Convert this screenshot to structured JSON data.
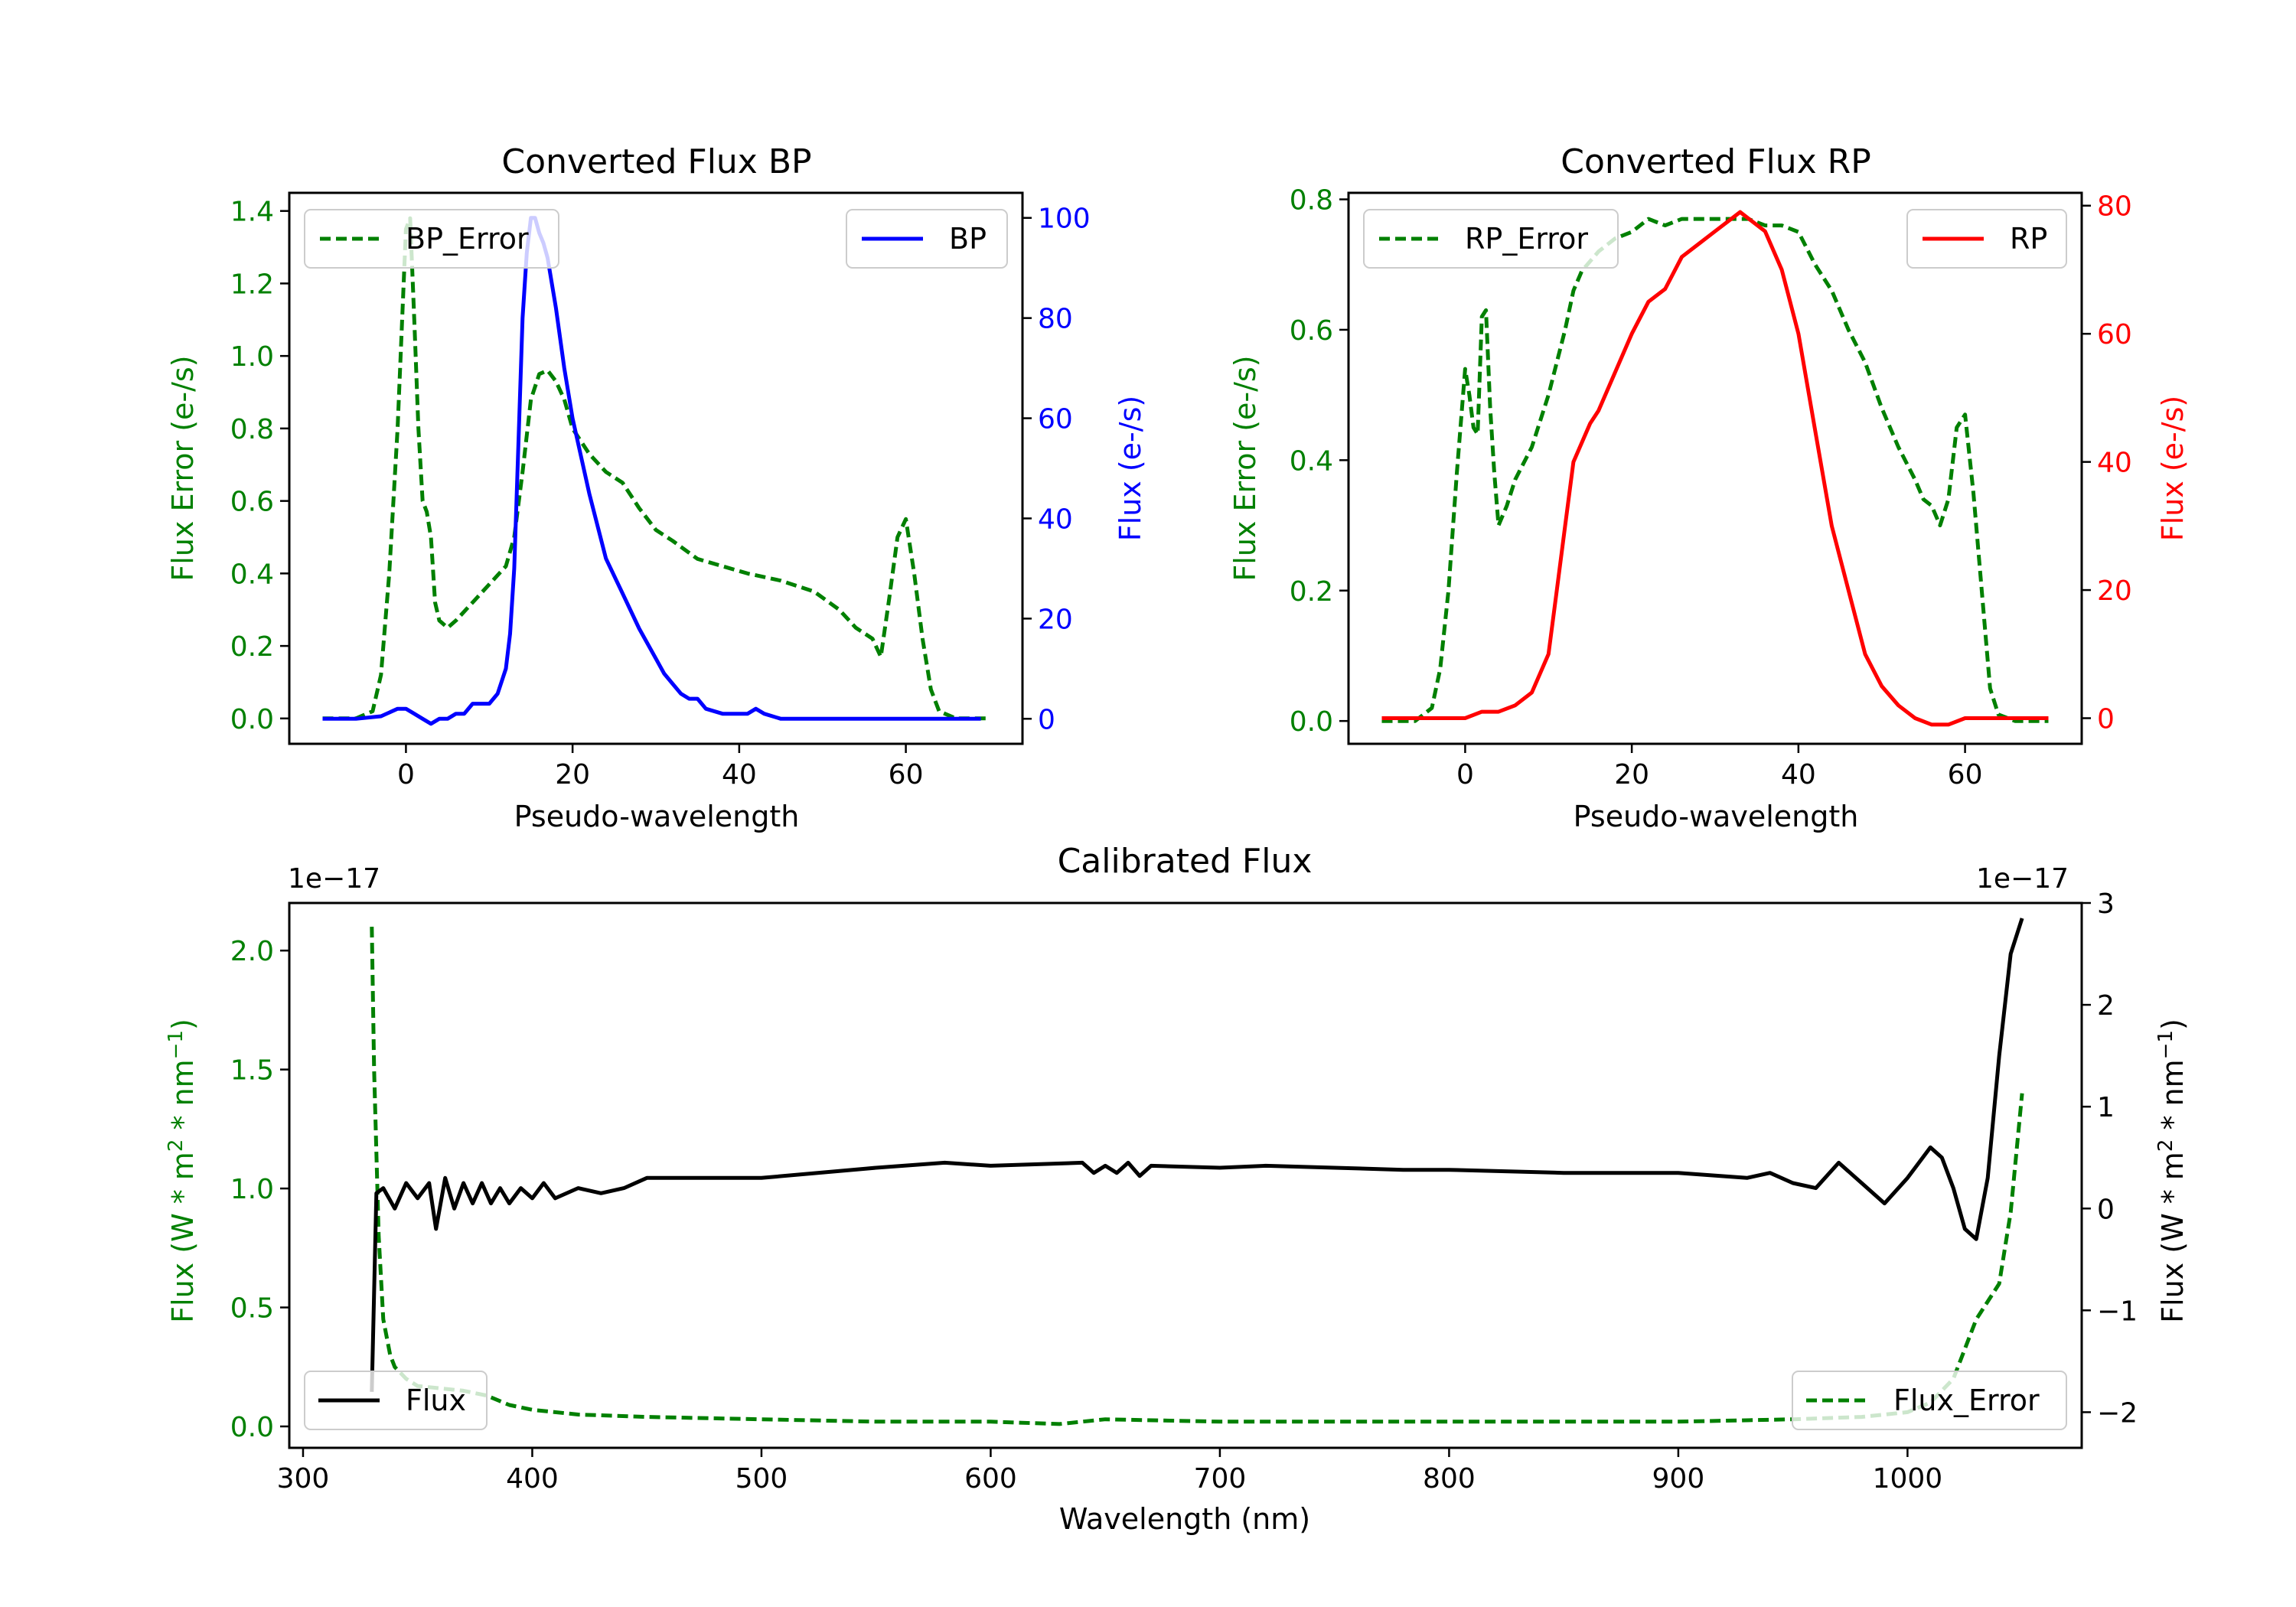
{
  "colors": {
    "green": "#008000",
    "blue": "#0000ff",
    "red": "#ff0000",
    "black": "#000000"
  },
  "chart_data": [
    {
      "type": "line",
      "title": "Converted Flux BP",
      "xlabel": "Pseudo-wavelength",
      "ylabel_left": "Flux Error (e-/s)",
      "ylabel_right": "Flux (e-/s)",
      "xlim": [
        -14,
        74
      ],
      "ylim_left": [
        -0.07,
        1.45
      ],
      "ylim_right": [
        -5,
        105
      ],
      "xticks": [
        "0",
        "20",
        "40",
        "60"
      ],
      "yticks_left": [
        "0.0",
        "0.2",
        "0.4",
        "0.6",
        "0.8",
        "1.0",
        "1.2",
        "1.4"
      ],
      "yticks_right": [
        "0",
        "20",
        "40",
        "60",
        "80",
        "100"
      ],
      "legend_left": "BP_Error",
      "legend_right": "BP",
      "series": [
        {
          "name": "BP_Error",
          "axis": "left",
          "style": "dashed",
          "color": "green",
          "x": [
            -10,
            -6,
            -4,
            -3,
            -2,
            -1,
            0,
            0.5,
            1,
            1.5,
            2,
            2.5,
            3,
            3.5,
            4,
            5,
            6,
            8,
            10,
            12,
            13,
            14,
            15,
            16,
            17,
            18,
            19,
            20,
            22,
            24,
            26,
            28,
            30,
            32,
            35,
            38,
            41,
            45,
            49,
            52,
            54,
            56,
            57,
            58,
            59,
            60,
            61,
            62,
            63,
            64,
            66,
            70
          ],
          "y": [
            0,
            0,
            0.02,
            0.12,
            0.4,
            0.8,
            1.35,
            1.38,
            1.1,
            0.8,
            0.6,
            0.57,
            0.5,
            0.32,
            0.27,
            0.25,
            0.27,
            0.32,
            0.37,
            0.42,
            0.5,
            0.68,
            0.88,
            0.95,
            0.96,
            0.93,
            0.88,
            0.8,
            0.73,
            0.68,
            0.65,
            0.58,
            0.52,
            0.49,
            0.44,
            0.42,
            0.4,
            0.38,
            0.35,
            0.3,
            0.25,
            0.22,
            0.17,
            0.33,
            0.5,
            0.55,
            0.4,
            0.22,
            0.08,
            0.02,
            0,
            0
          ]
        },
        {
          "name": "BP",
          "axis": "right",
          "style": "solid",
          "color": "blue",
          "x": [
            -10,
            -6,
            -3,
            -1,
            0,
            1,
            2,
            3,
            4,
            5,
            6,
            7,
            8,
            9,
            10,
            11,
            12,
            12.5,
            13,
            13.5,
            14,
            14.5,
            15,
            15.5,
            16,
            16.5,
            17,
            18,
            19,
            20,
            22,
            24,
            26,
            28,
            30,
            31,
            32,
            33,
            34,
            35,
            36,
            38,
            40,
            41,
            42,
            43,
            45,
            47,
            50,
            55,
            60,
            65,
            69
          ],
          "y": [
            0,
            0,
            0.5,
            2,
            2,
            1,
            0,
            -1,
            0,
            0,
            1,
            1,
            3,
            3,
            3,
            5,
            10,
            17,
            30,
            55,
            80,
            93,
            100,
            100,
            97,
            95,
            92,
            82,
            70,
            60,
            45,
            32,
            25,
            18,
            12,
            9,
            7,
            5,
            4,
            4,
            2,
            1,
            1,
            1,
            2,
            1,
            0,
            0,
            0,
            0,
            0,
            0,
            0
          ]
        }
      ]
    },
    {
      "type": "line",
      "title": "Converted Flux RP",
      "xlabel": "Pseudo-wavelength",
      "ylabel_left": "Flux Error (e-/s)",
      "ylabel_right": "Flux (e-/s)",
      "xlim": [
        -14,
        74
      ],
      "ylim_left": [
        -0.035,
        0.81
      ],
      "ylim_right": [
        -4,
        82
      ],
      "xticks": [
        "0",
        "20",
        "40",
        "60"
      ],
      "yticks_left": [
        "0.0",
        "0.2",
        "0.4",
        "0.6",
        "0.8"
      ],
      "yticks_right": [
        "0",
        "20",
        "40",
        "60",
        "80"
      ],
      "legend_left": "RP_Error",
      "legend_right": "RP",
      "series": [
        {
          "name": "RP_Error",
          "axis": "left",
          "style": "dashed",
          "color": "green",
          "x": [
            -10,
            -6,
            -4,
            -3,
            -2,
            -1,
            0,
            0.5,
            1,
            1.5,
            2,
            2.5,
            3,
            3.5,
            4,
            5,
            6,
            8,
            10,
            12,
            13,
            14,
            16,
            18,
            20,
            22,
            24,
            26,
            28,
            30,
            32,
            34,
            36,
            38,
            40,
            42,
            44,
            46,
            48,
            50,
            52,
            54,
            55,
            56,
            57,
            58,
            59,
            60,
            61,
            62,
            63,
            64,
            66,
            70
          ],
          "y": [
            0,
            0,
            0.02,
            0.08,
            0.2,
            0.38,
            0.54,
            0.5,
            0.45,
            0.44,
            0.62,
            0.63,
            0.48,
            0.38,
            0.3,
            0.33,
            0.37,
            0.42,
            0.5,
            0.6,
            0.66,
            0.69,
            0.72,
            0.74,
            0.75,
            0.77,
            0.76,
            0.77,
            0.77,
            0.77,
            0.77,
            0.77,
            0.76,
            0.76,
            0.75,
            0.7,
            0.66,
            0.6,
            0.55,
            0.48,
            0.42,
            0.37,
            0.34,
            0.33,
            0.3,
            0.34,
            0.45,
            0.47,
            0.35,
            0.2,
            0.05,
            0.01,
            0,
            0
          ]
        },
        {
          "name": "RP",
          "axis": "right",
          "style": "solid",
          "color": "red",
          "x": [
            -10,
            -5,
            0,
            2,
            4,
            6,
            8,
            10,
            11,
            12,
            13,
            14,
            15,
            16,
            18,
            20,
            22,
            24,
            26,
            28,
            30,
            32,
            33,
            34,
            35,
            36,
            38,
            40,
            42,
            44,
            46,
            48,
            50,
            52,
            54,
            56,
            58,
            60,
            62,
            66,
            70
          ],
          "y": [
            0,
            0,
            0,
            1,
            1,
            2,
            4,
            10,
            20,
            30,
            40,
            43,
            46,
            48,
            54,
            60,
            65,
            67,
            72,
            74,
            76,
            78,
            79,
            78,
            77,
            76,
            70,
            60,
            45,
            30,
            20,
            10,
            5,
            2,
            0,
            -1,
            -1,
            0,
            0,
            0,
            0
          ]
        }
      ]
    },
    {
      "type": "line",
      "title": "Calibrated Flux",
      "xlabel": "Wavelength (nm)",
      "ylabel_left": "Flux (W * m$^2$ * nm$^{-1}$)",
      "ylabel_right": "Flux (W * m$^2$ * nm$^{-1}$)",
      "ylabel_text": "Flux (W * m",
      "ylabel_sup1": "2",
      "ylabel_mid": " * nm",
      "ylabel_sup2": "−1",
      "ylabel_end": ")",
      "offset_left": "1e−17",
      "offset_right": "1e−17",
      "xlim": [
        294,
        1076
      ],
      "ylim_left": [
        -0.09,
        2.2
      ],
      "ylim_right": [
        -2.35,
        3.0
      ],
      "xticks": [
        "300",
        "400",
        "500",
        "600",
        "700",
        "800",
        "900",
        "1000"
      ],
      "yticks_left": [
        "0.0",
        "0.5",
        "1.0",
        "1.5",
        "2.0"
      ],
      "yticks_right": [
        "−2",
        "−1",
        "0",
        "1",
        "2",
        "3"
      ],
      "legend_left": "Flux",
      "legend_right": "Flux_Error",
      "series": [
        {
          "name": "Flux_Error",
          "axis": "left",
          "style": "dashed",
          "color": "green",
          "x": [
            330,
            331,
            333,
            335,
            338,
            340,
            345,
            350,
            360,
            370,
            380,
            390,
            400,
            420,
            450,
            500,
            550,
            600,
            630,
            640,
            650,
            700,
            800,
            900,
            950,
            980,
            1000,
            1010,
            1020,
            1030,
            1040,
            1045,
            1050
          ],
          "y": [
            2.1,
            1.5,
            0.8,
            0.45,
            0.3,
            0.25,
            0.2,
            0.17,
            0.16,
            0.15,
            0.13,
            0.09,
            0.07,
            0.05,
            0.04,
            0.03,
            0.02,
            0.02,
            0.01,
            0.02,
            0.03,
            0.02,
            0.02,
            0.02,
            0.03,
            0.04,
            0.06,
            0.1,
            0.2,
            0.45,
            0.6,
            0.9,
            1.4
          ]
        },
        {
          "name": "Flux",
          "axis": "right",
          "style": "solid",
          "color": "black",
          "x": [
            330,
            332,
            335,
            340,
            345,
            350,
            355,
            358,
            362,
            366,
            370,
            374,
            378,
            382,
            386,
            390,
            395,
            400,
            405,
            410,
            420,
            430,
            440,
            450,
            470,
            500,
            550,
            580,
            600,
            640,
            645,
            650,
            655,
            660,
            665,
            670,
            700,
            720,
            750,
            780,
            800,
            850,
            900,
            930,
            940,
            950,
            960,
            970,
            980,
            990,
            1000,
            1010,
            1015,
            1020,
            1025,
            1030,
            1035,
            1040,
            1045,
            1050
          ],
          "y": [
            -1.8,
            0.15,
            0.2,
            0,
            0.25,
            0.1,
            0.25,
            -0.2,
            0.3,
            0,
            0.25,
            0.05,
            0.25,
            0.05,
            0.2,
            0.05,
            0.2,
            0.1,
            0.25,
            0.1,
            0.2,
            0.15,
            0.2,
            0.3,
            0.3,
            0.3,
            0.4,
            0.45,
            0.42,
            0.45,
            0.35,
            0.42,
            0.35,
            0.45,
            0.32,
            0.42,
            0.4,
            0.42,
            0.4,
            0.38,
            0.38,
            0.35,
            0.35,
            0.3,
            0.35,
            0.25,
            0.2,
            0.45,
            0.25,
            0.05,
            0.3,
            0.6,
            0.5,
            0.2,
            -0.2,
            -0.3,
            0.3,
            1.5,
            2.5,
            2.85
          ]
        }
      ]
    }
  ]
}
